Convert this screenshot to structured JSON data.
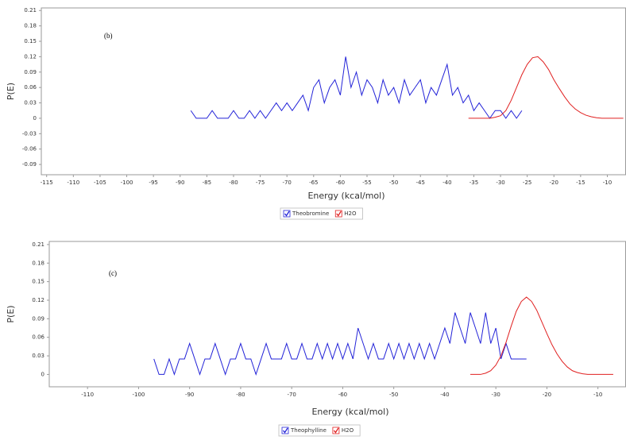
{
  "chart_data": [
    {
      "type": "line",
      "annotation": "(b)",
      "xlabel": "Energy (kcal/mol)",
      "ylabel": "P(E)",
      "xlim": [
        -116,
        -6.5
      ],
      "ylim": [
        -0.11,
        0.215
      ],
      "xticks": [
        -115,
        -110,
        -105,
        -100,
        -95,
        -90,
        -85,
        -80,
        -75,
        -70,
        -65,
        -60,
        -55,
        -50,
        -45,
        -40,
        -35,
        -30,
        -25,
        -20,
        -15,
        -10
      ],
      "yticks": [
        0.21,
        0.18,
        0.15,
        0.12,
        0.09,
        0.06,
        0.03,
        0,
        -0.03,
        -0.06,
        -0.09
      ],
      "grid": false,
      "series": [
        {
          "name": "Theobromine",
          "color": "#2323d8",
          "x": [
            -88,
            -87,
            -86,
            -85,
            -84,
            -83,
            -82,
            -81,
            -80,
            -79,
            -78,
            -77,
            -76,
            -75,
            -74,
            -73,
            -72,
            -71,
            -70,
            -69,
            -68,
            -67,
            -66,
            -65,
            -64,
            -63,
            -62,
            -61,
            -60,
            -59,
            -58,
            -57,
            -56,
            -55,
            -54,
            -53,
            -52,
            -51,
            -50,
            -49,
            -48,
            -47,
            -46,
            -45,
            -44,
            -43,
            -42,
            -41,
            -40,
            -39,
            -38,
            -37,
            -36,
            -35,
            -34,
            -33,
            -32,
            -31,
            -30,
            -29,
            -28,
            -27,
            -26
          ],
          "values": [
            0.015,
            0,
            0,
            0,
            0.015,
            0,
            0,
            0,
            0.015,
            0,
            0,
            0.015,
            0,
            0.015,
            0,
            0.015,
            0.03,
            0.015,
            0.03,
            0.015,
            0.03,
            0.045,
            0.015,
            0.06,
            0.075,
            0.03,
            0.06,
            0.075,
            0.045,
            0.12,
            0.06,
            0.09,
            0.045,
            0.075,
            0.06,
            0.03,
            0.075,
            0.045,
            0.06,
            0.03,
            0.075,
            0.045,
            0.06,
            0.075,
            0.03,
            0.06,
            0.045,
            0.075,
            0.105,
            0.045,
            0.06,
            0.03,
            0.045,
            0.015,
            0.03,
            0.015,
            0,
            0.015,
            0.015,
            0,
            0.015,
            0,
            0.015
          ]
        },
        {
          "name": "H2O",
          "color": "#e02020",
          "x": [
            -36,
            -35,
            -34,
            -33,
            -32,
            -31,
            -30,
            -29,
            -28,
            -27,
            -26,
            -25,
            -24,
            -23,
            -22,
            -21,
            -20,
            -19,
            -18,
            -17,
            -16,
            -15,
            -14,
            -13,
            -12,
            -11,
            -10,
            -9,
            -8,
            -7
          ],
          "values": [
            0,
            0,
            0,
            0,
            0,
            0.002,
            0.005,
            0.015,
            0.035,
            0.06,
            0.085,
            0.105,
            0.118,
            0.12,
            0.11,
            0.095,
            0.075,
            0.058,
            0.042,
            0.028,
            0.018,
            0.011,
            0.006,
            0.003,
            0.001,
            0,
            0,
            0,
            0,
            0
          ]
        }
      ]
    },
    {
      "type": "line",
      "annotation": "(c)",
      "xlabel": "Energy (kcal/mol)",
      "ylabel": "P(E)",
      "xlim": [
        -117.5,
        -4.5
      ],
      "ylim": [
        -0.02,
        0.215
      ],
      "xticks": [
        -110,
        -100,
        -90,
        -80,
        -70,
        -60,
        -50,
        -40,
        -30,
        -20,
        -10
      ],
      "yticks": [
        0.21,
        0.18,
        0.15,
        0.12,
        0.09,
        0.06,
        0.03,
        0
      ],
      "grid": false,
      "series": [
        {
          "name": "Theophylline",
          "color": "#2323d8",
          "x": [
            -97,
            -96,
            -95,
            -94,
            -93,
            -92,
            -91,
            -90,
            -89,
            -88,
            -87,
            -86,
            -85,
            -84,
            -83,
            -82,
            -81,
            -80,
            -79,
            -78,
            -77,
            -76,
            -75,
            -74,
            -73,
            -72,
            -71,
            -70,
            -69,
            -68,
            -67,
            -66,
            -65,
            -64,
            -63,
            -62,
            -61,
            -60,
            -59,
            -58,
            -57,
            -56,
            -55,
            -54,
            -53,
            -52,
            -51,
            -50,
            -49,
            -48,
            -47,
            -46,
            -45,
            -44,
            -43,
            -42,
            -41,
            -40,
            -39,
            -38,
            -37,
            -36,
            -35,
            -34,
            -33,
            -32,
            -31,
            -30,
            -29,
            -28,
            -27,
            -26,
            -25,
            -24
          ],
          "values": [
            0.025,
            0,
            0,
            0.025,
            0,
            0.025,
            0.025,
            0.05,
            0.025,
            0,
            0.025,
            0.025,
            0.05,
            0.025,
            0,
            0.025,
            0.025,
            0.05,
            0.025,
            0.025,
            0,
            0.025,
            0.05,
            0.025,
            0.025,
            0.025,
            0.05,
            0.025,
            0.025,
            0.05,
            0.025,
            0.025,
            0.05,
            0.025,
            0.05,
            0.025,
            0.05,
            0.025,
            0.05,
            0.025,
            0.075,
            0.05,
            0.025,
            0.05,
            0.025,
            0.025,
            0.05,
            0.025,
            0.05,
            0.025,
            0.05,
            0.025,
            0.05,
            0.025,
            0.05,
            0.025,
            0.05,
            0.075,
            0.05,
            0.1,
            0.075,
            0.05,
            0.1,
            0.075,
            0.05,
            0.1,
            0.05,
            0.075,
            0.025,
            0.05,
            0.025,
            0.025,
            0.025,
            0.025
          ]
        },
        {
          "name": "H2O",
          "color": "#e02020",
          "x": [
            -35,
            -34,
            -33,
            -32,
            -31,
            -30,
            -29,
            -28,
            -27,
            -26,
            -25,
            -24,
            -23,
            -22,
            -21,
            -20,
            -19,
            -18,
            -17,
            -16,
            -15,
            -14,
            -13,
            -12,
            -11,
            -10,
            -9,
            -8,
            -7
          ],
          "values": [
            0,
            0,
            0,
            0.002,
            0.006,
            0.015,
            0.03,
            0.052,
            0.078,
            0.102,
            0.118,
            0.125,
            0.118,
            0.104,
            0.085,
            0.066,
            0.048,
            0.033,
            0.021,
            0.012,
            0.006,
            0.003,
            0.001,
            0,
            0,
            0,
            0,
            0,
            0
          ]
        }
      ]
    }
  ]
}
